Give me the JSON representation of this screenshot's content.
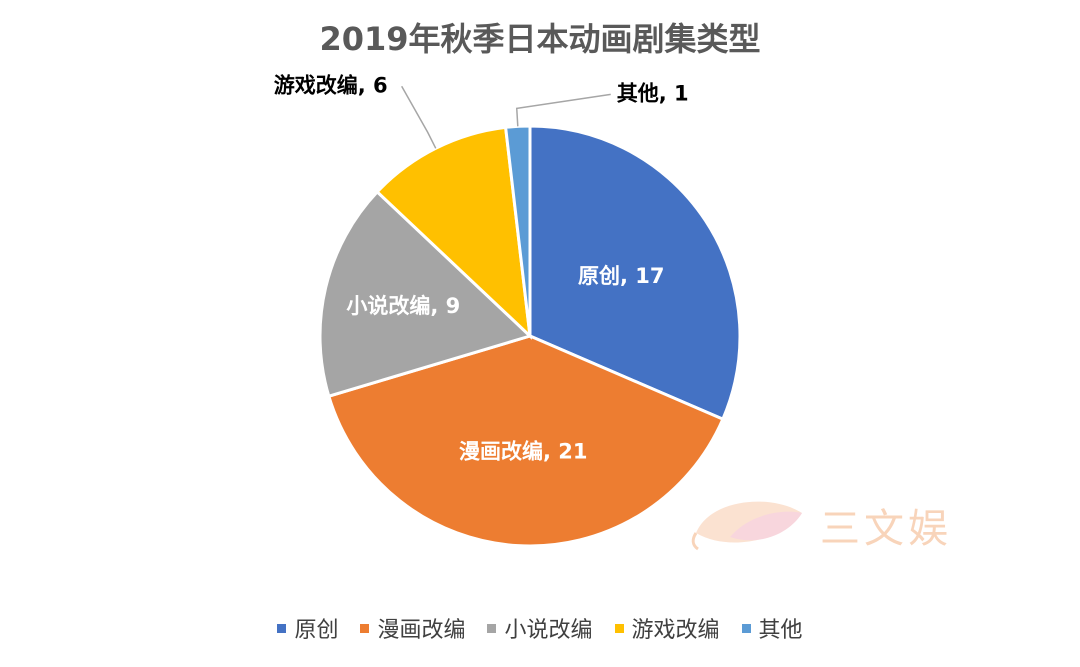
{
  "chart_data": {
    "type": "pie",
    "title": "2019年秋季日本动画剧集类型",
    "categories": [
      "原创",
      "漫画改编",
      "小说改编",
      "游戏改编",
      "其他"
    ],
    "values": [
      17,
      21,
      9,
      6,
      1
    ],
    "colors": [
      "#4472C4",
      "#ED7D31",
      "#A5A5A5",
      "#FFC000",
      "#5B9BD5"
    ],
    "data_labels": [
      "原创, 17",
      "漫画改编, 21",
      "小说改编, 9",
      "游戏改编, 6",
      "其他, 1"
    ],
    "legend_position": "bottom"
  },
  "watermark": {
    "text": "三文娱",
    "icon": "fish-logo-icon"
  }
}
